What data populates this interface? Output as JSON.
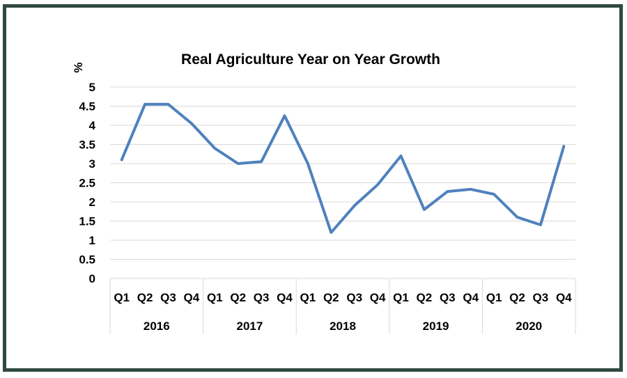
{
  "chart_data": {
    "type": "line",
    "title": "Real Agriculture Year on Year Growth",
    "ylabel": "%",
    "xlabel": "",
    "ylim": [
      0,
      5
    ],
    "yticks": [
      "0",
      "0.5",
      "1",
      "1.5",
      "2",
      "2.5",
      "3",
      "3.5",
      "4",
      "4.5",
      "5"
    ],
    "grid": true,
    "legend": "none",
    "years": [
      "2016",
      "2017",
      "2018",
      "2019",
      "2020"
    ],
    "categories": [
      "Q1",
      "Q2",
      "Q3",
      "Q4",
      "Q1",
      "Q2",
      "Q3",
      "Q4",
      "Q1",
      "Q2",
      "Q3",
      "Q4",
      "Q1",
      "Q2",
      "Q3",
      "Q4",
      "Q1",
      "Q2",
      "Q3",
      "Q4"
    ],
    "series": [
      {
        "color": "#4f81bd",
        "values": [
          3.1,
          4.55,
          4.55,
          4.05,
          3.4,
          3.0,
          3.05,
          4.25,
          3.0,
          1.2,
          1.9,
          2.45,
          3.2,
          1.8,
          2.27,
          2.33,
          2.2,
          1.6,
          1.4,
          3.45
        ]
      }
    ]
  }
}
